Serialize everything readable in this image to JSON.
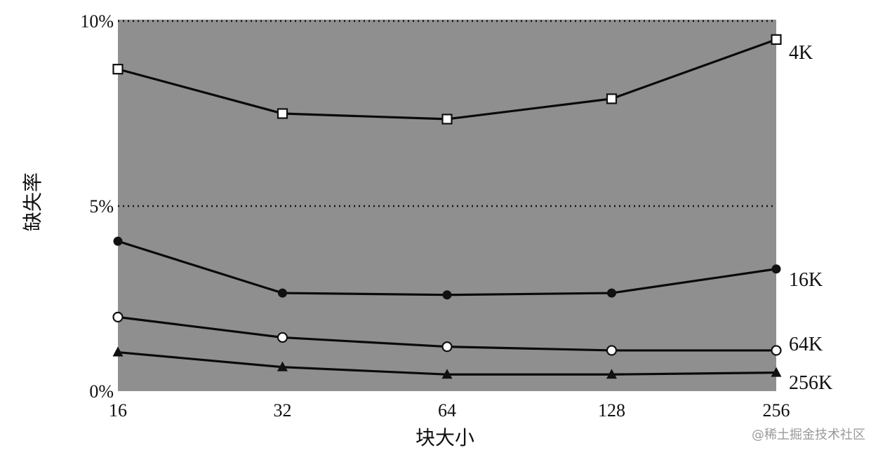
{
  "chart_data": {
    "type": "line",
    "categories": [
      "16",
      "32",
      "64",
      "128",
      "256"
    ],
    "xlabel": "块大小",
    "ylabel": "缺失率",
    "y_tick_labels": [
      "0%",
      "5%",
      "10%"
    ],
    "y_ticks": [
      0,
      5,
      10
    ],
    "ylim": [
      0,
      10
    ],
    "grid_y": [
      5,
      10
    ],
    "grid_style": "dotted",
    "series": [
      {
        "name": "4K",
        "marker": "square-open",
        "values": [
          8.7,
          7.5,
          7.35,
          7.9,
          9.5
        ]
      },
      {
        "name": "16K",
        "marker": "circle-filled",
        "values": [
          4.05,
          2.65,
          2.6,
          2.65,
          3.3
        ]
      },
      {
        "name": "64K",
        "marker": "circle-open",
        "values": [
          2.0,
          1.45,
          1.2,
          1.1,
          1.1
        ]
      },
      {
        "name": "256K",
        "marker": "triangle-filled",
        "values": [
          1.05,
          0.65,
          0.45,
          0.45,
          0.5
        ]
      }
    ]
  },
  "watermark": "@稀土掘金技术社区",
  "colors": {
    "plot_background": "#8f8f8f",
    "line": "#0a0a0a"
  }
}
